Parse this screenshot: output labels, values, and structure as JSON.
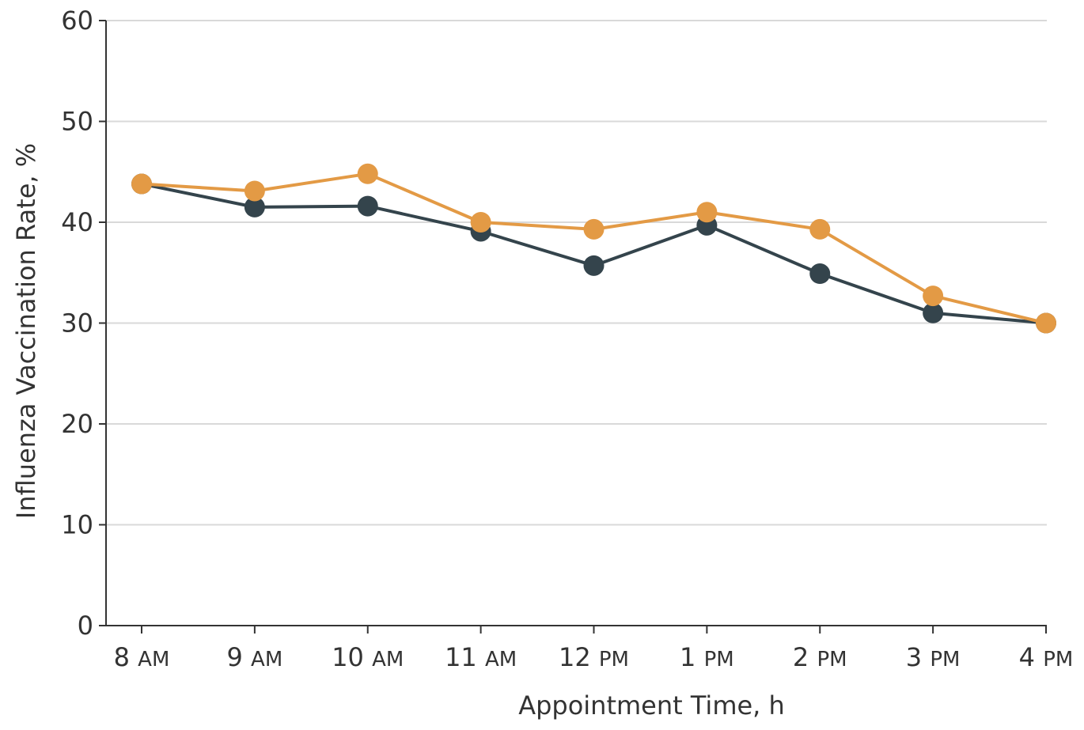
{
  "chart_data": {
    "type": "line",
    "title": "",
    "xlabel": "Appointment Time, h",
    "ylabel": "Influenza Vaccination Rate, %",
    "ylim": [
      0,
      60
    ],
    "yticks": [
      0,
      10,
      20,
      30,
      40,
      50,
      60
    ],
    "grid": true,
    "categories": [
      {
        "num": "8",
        "suffix": "AM"
      },
      {
        "num": "9",
        "suffix": "AM"
      },
      {
        "num": "10",
        "suffix": "AM"
      },
      {
        "num": "11",
        "suffix": "AM"
      },
      {
        "num": "12",
        "suffix": "PM"
      },
      {
        "num": "1",
        "suffix": "PM"
      },
      {
        "num": "2",
        "suffix": "PM"
      },
      {
        "num": "3",
        "suffix": "PM"
      },
      {
        "num": "4",
        "suffix": "PM"
      }
    ],
    "series": [
      {
        "color": "#34444c",
        "values": [
          43.8,
          41.5,
          41.6,
          39.1,
          35.7,
          39.7,
          34.9,
          31.0,
          30.0
        ]
      },
      {
        "color": "#e39a45",
        "values": [
          43.8,
          43.1,
          44.8,
          40.0,
          39.3,
          41.0,
          39.3,
          32.7,
          30.0
        ]
      }
    ]
  }
}
